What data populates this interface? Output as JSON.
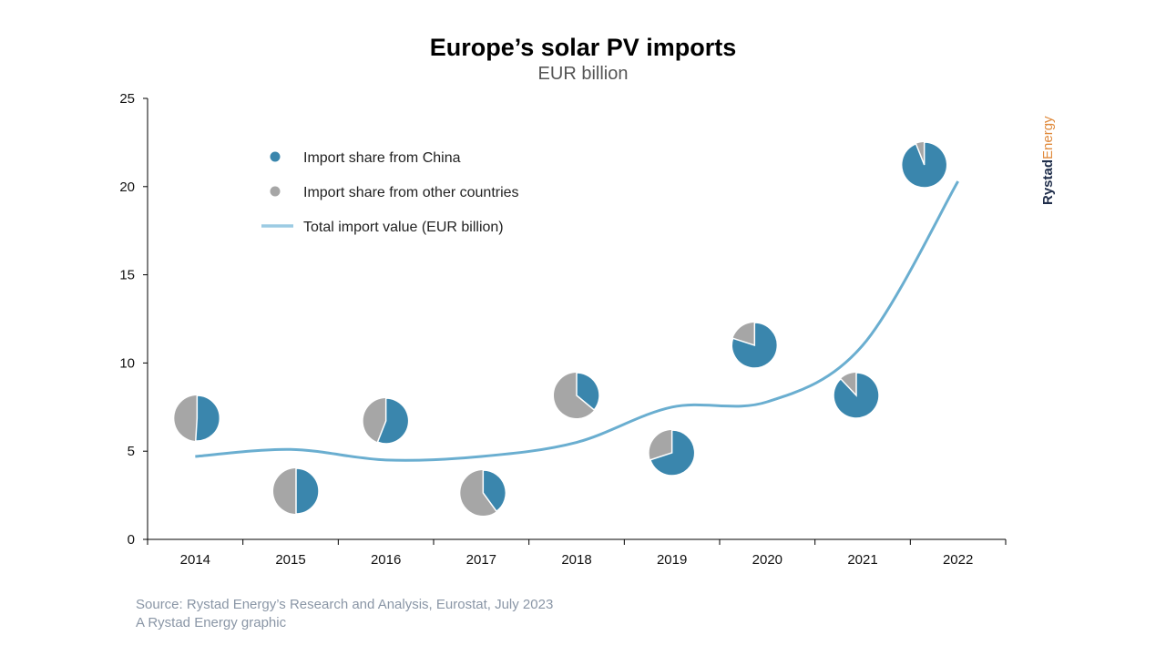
{
  "chart_data": {
    "type": "line",
    "title": "Europe’s solar PV imports",
    "subtitle": "EUR billion",
    "categories": [
      "2014",
      "2015",
      "2016",
      "2017",
      "2018",
      "2019",
      "2020",
      "2021",
      "2022"
    ],
    "ylim": [
      0,
      25
    ],
    "yticks": [
      "0",
      "5",
      "10",
      "15",
      "20",
      "25"
    ],
    "grid": false,
    "legend_position": "top-left",
    "series": [
      {
        "name": "Total import value (EUR billion)",
        "values": [
          4.7,
          5.1,
          4.5,
          4.7,
          5.5,
          7.5,
          7.8,
          11.0,
          20.3
        ],
        "color": "#6aaed0"
      }
    ],
    "pies": {
      "china_share_pct": [
        51,
        50,
        56,
        40,
        36,
        70,
        80,
        88,
        94
      ],
      "legend": [
        {
          "name": "Import share from China",
          "color": "#3a86ad"
        },
        {
          "name": "Import share from other countries",
          "color": "#a6a6a6"
        }
      ]
    }
  },
  "footer": {
    "source": "Source: Rystad Energy’s Research and Analysis, Eurostat, July 2023",
    "credit": "A Rystad Energy graphic"
  },
  "logo": {
    "part1": "Rystad",
    "part2": "Energy"
  }
}
